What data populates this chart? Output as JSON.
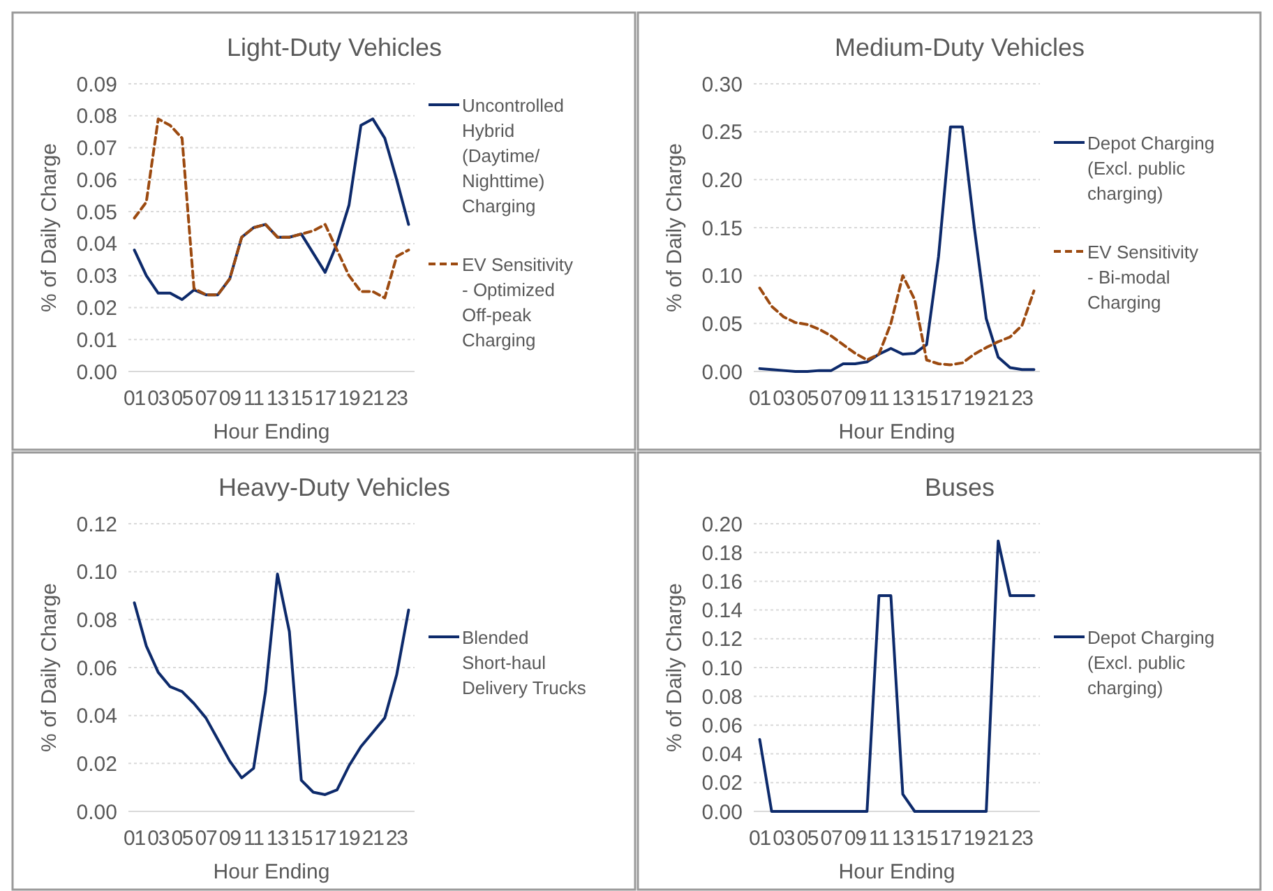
{
  "chart_data": [
    {
      "type": "line",
      "title": "Light-Duty Vehicles",
      "xlabel": "Hour Ending",
      "ylabel": "% of Daily Charge",
      "categories": [
        "01",
        null,
        "03",
        null,
        "05",
        null,
        "07",
        null,
        "09",
        null,
        "11",
        null,
        "13",
        null,
        "15",
        null,
        "17",
        null,
        "19",
        null,
        "21",
        null,
        "23",
        null
      ],
      "ylim": [
        0,
        0.09
      ],
      "yticks": [
        {
          "value": 0,
          "label": "0.00"
        },
        {
          "value": 0.01,
          "label": "0.01"
        },
        {
          "value": 0.02,
          "label": "0.02"
        },
        {
          "value": 0.03,
          "label": "0.03"
        },
        {
          "value": 0.04,
          "label": "0.04"
        },
        {
          "value": 0.05,
          "label": "0.05"
        },
        {
          "value": 0.06,
          "label": "0.06"
        },
        {
          "value": 0.07,
          "label": "0.07"
        },
        {
          "value": 0.08,
          "label": "0.08"
        },
        {
          "value": 0.09,
          "label": "0.09"
        }
      ],
      "grid": "y",
      "legend": "right",
      "marker": "none",
      "series": [
        {
          "name": "Uncontrolled Hybrid (Daytime/ Nighttime) Charging",
          "color": "#0d2a6b",
          "line_style": "solid",
          "values": [
            0.038,
            0.03,
            0.0245,
            0.0245,
            0.0225,
            0.0255,
            0.024,
            0.024,
            0.029,
            0.042,
            0.045,
            0.046,
            0.042,
            0.042,
            0.043,
            0.037,
            0.031,
            0.04,
            0.052,
            0.077,
            0.079,
            0.073,
            0.06,
            0.046
          ]
        },
        {
          "name": "EV Sensitivity - Optimized Off-peak Charging",
          "color": "#9c4a10",
          "line_style": "dashed",
          "values": [
            0.048,
            0.053,
            0.079,
            0.077,
            0.073,
            0.026,
            0.024,
            0.024,
            0.029,
            0.042,
            0.045,
            0.046,
            0.042,
            0.042,
            0.043,
            0.044,
            0.046,
            0.038,
            0.03,
            0.025,
            0.025,
            0.023,
            0.036,
            0.038
          ]
        }
      ]
    },
    {
      "type": "line",
      "title": "Medium-Duty Vehicles",
      "xlabel": "Hour Ending",
      "ylabel": "% of Daily Charge",
      "categories": [
        "01",
        null,
        "03",
        null,
        "05",
        null,
        "07",
        null,
        "09",
        null,
        "11",
        null,
        "13",
        null,
        "15",
        null,
        "17",
        null,
        "19",
        null,
        "21",
        null,
        "23",
        null
      ],
      "ylim": [
        0,
        0.3
      ],
      "yticks": [
        {
          "value": 0,
          "label": "0.00"
        },
        {
          "value": 0.05,
          "label": "0.05"
        },
        {
          "value": 0.1,
          "label": "0.10"
        },
        {
          "value": 0.15,
          "label": "0.15"
        },
        {
          "value": 0.2,
          "label": "0.20"
        },
        {
          "value": 0.25,
          "label": "0.25"
        },
        {
          "value": 0.3,
          "label": "0.30"
        }
      ],
      "grid": "y",
      "legend": "right",
      "marker": "none",
      "series": [
        {
          "name": "Depot Charging (Excl. public charging)",
          "color": "#0d2a6b",
          "line_style": "solid",
          "values": [
            0.003,
            0.002,
            0.001,
            0,
            0,
            0.001,
            0.001,
            0.008,
            0.008,
            0.01,
            0.018,
            0.024,
            0.018,
            0.019,
            0.028,
            0.12,
            0.255,
            0.255,
            0.15,
            0.055,
            0.015,
            0.004,
            0.002,
            0.002
          ]
        },
        {
          "name": "EV Sensitivity - Bi-modal Charging",
          "color": "#9c4a10",
          "line_style": "dashed",
          "values": [
            0.087,
            0.068,
            0.057,
            0.051,
            0.049,
            0.044,
            0.037,
            0.028,
            0.019,
            0.012,
            0.018,
            0.05,
            0.1,
            0.075,
            0.012,
            0.008,
            0.007,
            0.009,
            0.018,
            0.025,
            0.031,
            0.036,
            0.048,
            0.084
          ]
        }
      ]
    },
    {
      "type": "line",
      "title": "Heavy-Duty Vehicles",
      "xlabel": "Hour Ending",
      "ylabel": "% of Daily Charge",
      "categories": [
        "01",
        null,
        "03",
        null,
        "05",
        null,
        "07",
        null,
        "09",
        null,
        "11",
        null,
        "13",
        null,
        "15",
        null,
        "17",
        null,
        "19",
        null,
        "21",
        null,
        "23",
        null
      ],
      "ylim": [
        0,
        0.12
      ],
      "yticks": [
        {
          "value": 0,
          "label": "0.00"
        },
        {
          "value": 0.02,
          "label": "0.02"
        },
        {
          "value": 0.04,
          "label": "0.04"
        },
        {
          "value": 0.06,
          "label": "0.06"
        },
        {
          "value": 0.08,
          "label": "0.08"
        },
        {
          "value": 0.1,
          "label": "0.10"
        },
        {
          "value": 0.12,
          "label": "0.12"
        }
      ],
      "grid": "y",
      "legend": "right",
      "marker": "none",
      "series": [
        {
          "name": "Blended Short-haul Delivery Trucks",
          "color": "#0d2a6b",
          "line_style": "solid",
          "values": [
            0.087,
            0.069,
            0.058,
            0.052,
            0.05,
            0.045,
            0.039,
            0.03,
            0.021,
            0.014,
            0.018,
            0.05,
            0.099,
            0.075,
            0.013,
            0.008,
            0.007,
            0.009,
            0.019,
            0.027,
            0.033,
            0.039,
            0.057,
            0.084
          ]
        }
      ]
    },
    {
      "type": "line",
      "title": "Buses",
      "xlabel": "Hour Ending",
      "ylabel": "% of Daily Charge",
      "categories": [
        "01",
        null,
        "03",
        null,
        "05",
        null,
        "07",
        null,
        "09",
        null,
        "11",
        null,
        "13",
        null,
        "15",
        null,
        "17",
        null,
        "19",
        null,
        "21",
        null,
        "23",
        null
      ],
      "ylim": [
        0,
        0.2
      ],
      "yticks": [
        {
          "value": 0,
          "label": "0.00"
        },
        {
          "value": 0.02,
          "label": "0.02"
        },
        {
          "value": 0.04,
          "label": "0.04"
        },
        {
          "value": 0.06,
          "label": "0.06"
        },
        {
          "value": 0.08,
          "label": "0.08"
        },
        {
          "value": 0.1,
          "label": "0.10"
        },
        {
          "value": 0.12,
          "label": "0.12"
        },
        {
          "value": 0.14,
          "label": "0.14"
        },
        {
          "value": 0.16,
          "label": "0.16"
        },
        {
          "value": 0.18,
          "label": "0.18"
        },
        {
          "value": 0.2,
          "label": "0.20"
        }
      ],
      "grid": "y",
      "legend": "right",
      "marker": "none",
      "series": [
        {
          "name": "Depot Charging (Excl. public charging)",
          "color": "#0d2a6b",
          "line_style": "solid",
          "values": [
            0.05,
            0,
            0,
            0,
            0,
            0,
            0,
            0,
            0,
            0,
            0.15,
            0.15,
            0.012,
            0,
            0,
            0,
            0,
            0,
            0,
            0,
            0.188,
            0.15,
            0.15,
            0.15
          ]
        }
      ]
    }
  ]
}
